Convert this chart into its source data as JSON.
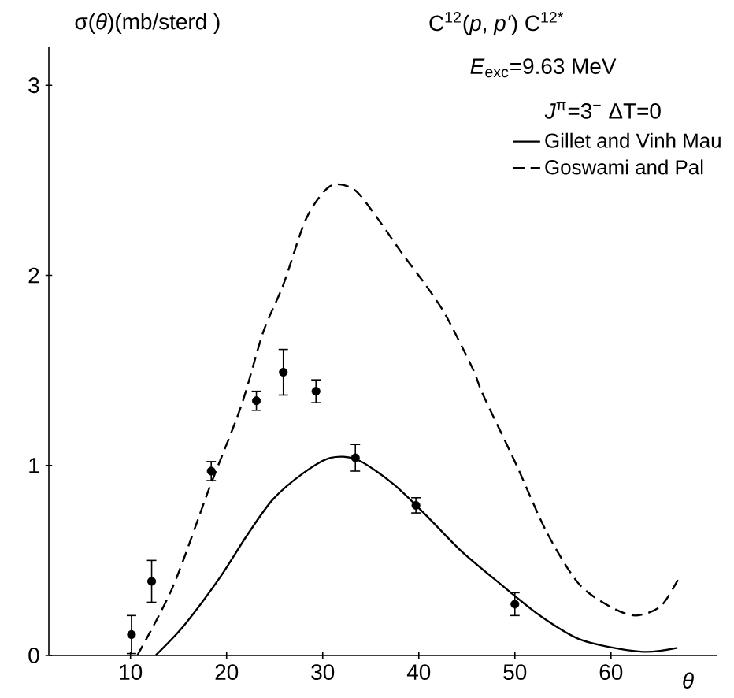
{
  "chart_data": {
    "type": "line",
    "title": "C$^{12}$(*p*, *p'*) C$^{12*}$",
    "subtitle": "*E*$_{exc}$=9.63 MeV",
    "annotations": [
      "*J*$^{π}$=3$^{−}$  ΔT=0"
    ],
    "ylabel": "σ(*θ*)(mb/sterd )",
    "xlabel": "*θ*",
    "xlim": [
      1.5,
      71
    ],
    "ylim": [
      0,
      3.2
    ],
    "xticks": [
      10,
      20,
      30,
      40,
      50,
      60
    ],
    "yticks": [
      0,
      1,
      2,
      3
    ],
    "legend": "top right",
    "series": [
      {
        "type": "scatter",
        "marker": "circle",
        "color": "#000000",
        "x": [
          10.1,
          12.2,
          18.4,
          23.1,
          25.9,
          29.3,
          33.4,
          39.7,
          50.0
        ],
        "values": [
          0.11,
          0.39,
          0.97,
          1.34,
          1.49,
          1.39,
          1.04,
          0.79,
          0.27
        ],
        "errors": [
          0.1,
          0.11,
          0.05,
          0.05,
          0.12,
          0.06,
          0.07,
          0.04,
          0.06
        ]
      },
      {
        "name": "Gillet and Vinh Mau",
        "line_style": "solid",
        "color": "#000000",
        "x": [
          12.6,
          15.6,
          19.3,
          22.1,
          24.8,
          28,
          30.8,
          33.6,
          37.4,
          41.1,
          44.4,
          48.4,
          52.6,
          57,
          63.1,
          66.9
        ],
        "values": [
          0,
          0.16,
          0.41,
          0.63,
          0.82,
          0.96,
          1.04,
          1.03,
          0.9,
          0.72,
          0.55,
          0.38,
          0.21,
          0.08,
          0.02,
          0.04
        ]
      },
      {
        "name": "Goswami and Pal",
        "line_style": "dashed",
        "color": "#000000",
        "x": [
          10.7,
          14.4,
          18.2,
          21.5,
          23.8,
          25.9,
          28.3,
          30.8,
          33.3,
          35.7,
          38.2,
          40.7,
          42.8,
          45.6,
          46.7,
          50,
          53.3,
          56.6,
          59.8,
          62.5,
          65.2,
          67.2
        ],
        "values": [
          0,
          0.36,
          0.88,
          1.31,
          1.7,
          1.95,
          2.3,
          2.47,
          2.45,
          2.3,
          2.12,
          1.95,
          1.79,
          1.51,
          1.37,
          1.02,
          0.65,
          0.38,
          0.26,
          0.21,
          0.26,
          0.42
        ]
      }
    ]
  }
}
